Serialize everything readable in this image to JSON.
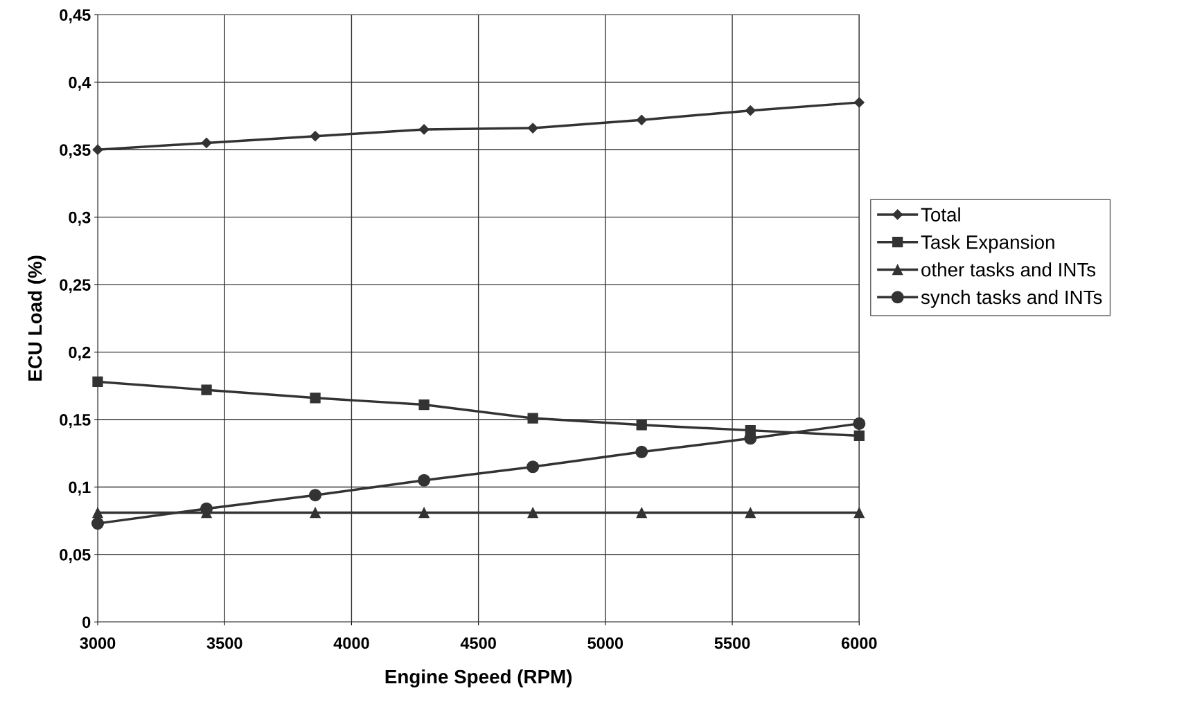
{
  "chart_data": {
    "type": "line",
    "xlabel": "Engine Speed (RPM)",
    "ylabel": "ECU Load (%)",
    "x": [
      3000,
      3428.6,
      3857.1,
      4285.7,
      4714.3,
      5142.9,
      5571.4,
      6000
    ],
    "series": [
      {
        "name": "Total",
        "color": "#333333",
        "marker": "diamond",
        "values": [
          0.35,
          0.355,
          0.36,
          0.365,
          0.366,
          0.372,
          0.379,
          0.385
        ]
      },
      {
        "name": "Task Expansion",
        "color": "#333333",
        "marker": "square",
        "values": [
          0.178,
          0.172,
          0.166,
          0.161,
          0.151,
          0.146,
          0.142,
          0.138
        ]
      },
      {
        "name": "other tasks and INTs",
        "color": "#333333",
        "marker": "triangle",
        "values": [
          0.081,
          0.081,
          0.081,
          0.081,
          0.081,
          0.081,
          0.081,
          0.081
        ]
      },
      {
        "name": "synch tasks and INTs",
        "color": "#333333",
        "marker": "circle",
        "values": [
          0.073,
          0.084,
          0.094,
          0.105,
          0.115,
          0.126,
          0.136,
          0.147
        ]
      }
    ],
    "xlim": [
      3000,
      6000
    ],
    "xticks": [
      3000,
      3500,
      4000,
      4500,
      5000,
      5500,
      6000
    ],
    "ylim": [
      0,
      0.45
    ],
    "yticks": [
      0,
      {
        "value": 0.05,
        "label": "0,05"
      },
      {
        "value": 0.1,
        "label": "0,1"
      },
      {
        "value": 0.15,
        "label": "0,15"
      },
      {
        "value": 0.2,
        "label": "0,2"
      },
      {
        "value": 0.25,
        "label": "0,25"
      },
      {
        "value": 0.3,
        "label": "0,3"
      },
      {
        "value": 0.35,
        "label": "0,35"
      },
      {
        "value": 0.4,
        "label": "0,4"
      },
      {
        "value": 0.45,
        "label": "0,45"
      }
    ],
    "grid": true,
    "legend": "right",
    "line_style": "solid"
  }
}
